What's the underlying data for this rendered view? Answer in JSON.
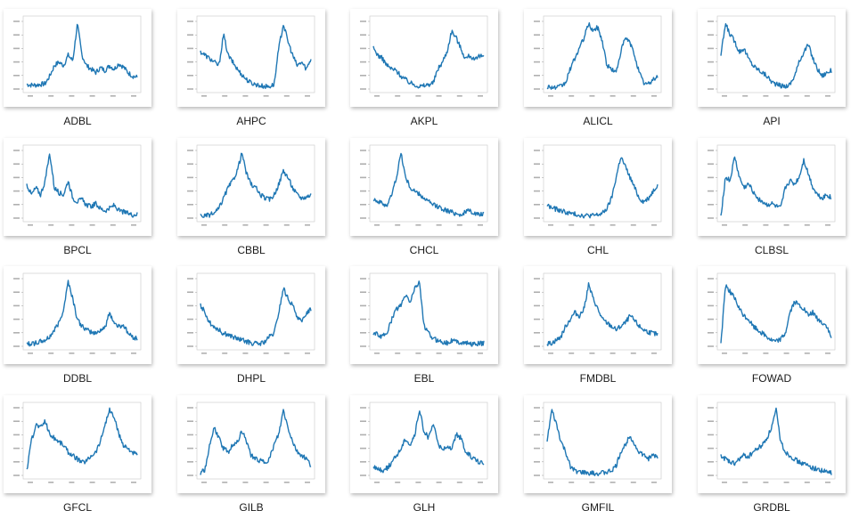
{
  "files": [
    {
      "name": "ADBL",
      "shape": [
        0.08,
        0.07,
        0.07,
        0.08,
        0.09,
        0.2,
        0.35,
        0.4,
        0.35,
        0.5,
        0.42,
        0.95,
        0.5,
        0.35,
        0.3,
        0.25,
        0.32,
        0.28,
        0.35,
        0.3,
        0.38,
        0.33,
        0.25,
        0.2,
        0.18
      ]
    },
    {
      "name": "AHPC",
      "shape": [
        0.55,
        0.5,
        0.45,
        0.4,
        0.35,
        0.8,
        0.5,
        0.4,
        0.3,
        0.22,
        0.15,
        0.1,
        0.08,
        0.06,
        0.05,
        0.05,
        0.08,
        0.6,
        0.95,
        0.7,
        0.5,
        0.35,
        0.4,
        0.3,
        0.45
      ]
    },
    {
      "name": "AKPL",
      "shape": [
        0.6,
        0.5,
        0.45,
        0.35,
        0.3,
        0.28,
        0.2,
        0.15,
        0.1,
        0.08,
        0.05,
        0.06,
        0.08,
        0.1,
        0.3,
        0.4,
        0.55,
        0.85,
        0.75,
        0.6,
        0.45,
        0.5,
        0.42,
        0.48,
        0.5
      ]
    },
    {
      "name": "ALICL",
      "shape": [
        0.05,
        0.04,
        0.03,
        0.05,
        0.1,
        0.3,
        0.45,
        0.6,
        0.75,
        0.95,
        0.85,
        0.9,
        0.7,
        0.35,
        0.3,
        0.25,
        0.55,
        0.75,
        0.68,
        0.5,
        0.25,
        0.1,
        0.08,
        0.15,
        0.2
      ]
    },
    {
      "name": "API",
      "shape": [
        0.5,
        0.95,
        0.8,
        0.7,
        0.55,
        0.6,
        0.45,
        0.35,
        0.3,
        0.25,
        0.2,
        0.12,
        0.08,
        0.06,
        0.05,
        0.08,
        0.2,
        0.4,
        0.55,
        0.65,
        0.45,
        0.3,
        0.2,
        0.25,
        0.28
      ]
    },
    {
      "name": "BPCL",
      "shape": [
        0.5,
        0.35,
        0.45,
        0.35,
        0.55,
        0.95,
        0.45,
        0.38,
        0.35,
        0.55,
        0.3,
        0.25,
        0.28,
        0.2,
        0.18,
        0.22,
        0.15,
        0.12,
        0.15,
        0.2,
        0.12,
        0.1,
        0.08,
        0.06,
        0.07
      ]
    },
    {
      "name": "CBBL",
      "shape": [
        0.05,
        0.04,
        0.06,
        0.08,
        0.15,
        0.3,
        0.45,
        0.55,
        0.7,
        0.95,
        0.65,
        0.5,
        0.45,
        0.35,
        0.3,
        0.28,
        0.35,
        0.5,
        0.7,
        0.6,
        0.45,
        0.35,
        0.3,
        0.32,
        0.35
      ]
    },
    {
      "name": "CHCL",
      "shape": [
        0.3,
        0.25,
        0.22,
        0.2,
        0.35,
        0.6,
        0.95,
        0.6,
        0.45,
        0.4,
        0.35,
        0.3,
        0.25,
        0.2,
        0.18,
        0.15,
        0.12,
        0.1,
        0.08,
        0.06,
        0.1,
        0.12,
        0.08,
        0.06,
        0.08
      ]
    },
    {
      "name": "CHL",
      "shape": [
        0.2,
        0.16,
        0.14,
        0.12,
        0.1,
        0.08,
        0.07,
        0.06,
        0.05,
        0.05,
        0.05,
        0.06,
        0.08,
        0.15,
        0.3,
        0.6,
        0.9,
        0.75,
        0.6,
        0.45,
        0.3,
        0.25,
        0.3,
        0.4,
        0.5
      ]
    },
    {
      "name": "CLBSL",
      "shape": [
        0.05,
        0.6,
        0.55,
        0.9,
        0.6,
        0.45,
        0.5,
        0.4,
        0.3,
        0.25,
        0.2,
        0.22,
        0.18,
        0.15,
        0.45,
        0.55,
        0.5,
        0.6,
        0.85,
        0.65,
        0.45,
        0.35,
        0.3,
        0.35,
        0.3
      ]
    },
    {
      "name": "DDBL",
      "shape": [
        0.05,
        0.05,
        0.06,
        0.08,
        0.1,
        0.15,
        0.25,
        0.35,
        0.55,
        0.95,
        0.7,
        0.4,
        0.3,
        0.25,
        0.22,
        0.2,
        0.25,
        0.28,
        0.5,
        0.35,
        0.3,
        0.32,
        0.2,
        0.15,
        0.12
      ]
    },
    {
      "name": "DHPL",
      "shape": [
        0.6,
        0.5,
        0.35,
        0.3,
        0.25,
        0.2,
        0.18,
        0.15,
        0.12,
        0.1,
        0.08,
        0.06,
        0.05,
        0.05,
        0.08,
        0.15,
        0.2,
        0.5,
        0.85,
        0.7,
        0.6,
        0.45,
        0.35,
        0.5,
        0.55
      ]
    },
    {
      "name": "EBL",
      "shape": [
        0.2,
        0.18,
        0.15,
        0.22,
        0.4,
        0.55,
        0.6,
        0.75,
        0.65,
        0.85,
        0.95,
        0.3,
        0.2,
        0.12,
        0.1,
        0.08,
        0.06,
        0.1,
        0.08,
        0.07,
        0.06,
        0.05,
        0.04,
        0.05,
        0.06
      ]
    },
    {
      "name": "FMDBL",
      "shape": [
        0.05,
        0.06,
        0.1,
        0.15,
        0.3,
        0.4,
        0.5,
        0.45,
        0.55,
        0.9,
        0.7,
        0.55,
        0.4,
        0.35,
        0.3,
        0.25,
        0.3,
        0.35,
        0.45,
        0.38,
        0.3,
        0.25,
        0.22,
        0.2,
        0.18
      ]
    },
    {
      "name": "FOWAD",
      "shape": [
        0.05,
        0.9,
        0.8,
        0.7,
        0.55,
        0.45,
        0.4,
        0.3,
        0.25,
        0.2,
        0.15,
        0.1,
        0.08,
        0.12,
        0.2,
        0.5,
        0.65,
        0.6,
        0.55,
        0.45,
        0.5,
        0.4,
        0.35,
        0.3,
        0.12
      ]
    },
    {
      "name": "GFCL",
      "shape": [
        0.08,
        0.5,
        0.75,
        0.7,
        0.8,
        0.6,
        0.55,
        0.5,
        0.45,
        0.35,
        0.3,
        0.25,
        0.2,
        0.22,
        0.3,
        0.35,
        0.5,
        0.75,
        0.95,
        0.85,
        0.6,
        0.45,
        0.4,
        0.35,
        0.3
      ]
    },
    {
      "name": "GILB",
      "shape": [
        0.05,
        0.1,
        0.45,
        0.7,
        0.55,
        0.4,
        0.35,
        0.45,
        0.5,
        0.65,
        0.5,
        0.3,
        0.25,
        0.22,
        0.2,
        0.25,
        0.45,
        0.6,
        0.95,
        0.7,
        0.5,
        0.35,
        0.3,
        0.25,
        0.15
      ]
    },
    {
      "name": "GLH",
      "shape": [
        0.15,
        0.1,
        0.08,
        0.12,
        0.2,
        0.3,
        0.4,
        0.55,
        0.45,
        0.6,
        0.95,
        0.65,
        0.55,
        0.75,
        0.5,
        0.35,
        0.45,
        0.4,
        0.6,
        0.55,
        0.35,
        0.3,
        0.25,
        0.2,
        0.18
      ]
    },
    {
      "name": "GMFIL",
      "shape": [
        0.5,
        0.95,
        0.75,
        0.5,
        0.35,
        0.15,
        0.08,
        0.06,
        0.05,
        0.05,
        0.04,
        0.04,
        0.05,
        0.06,
        0.08,
        0.15,
        0.35,
        0.45,
        0.6,
        0.45,
        0.35,
        0.3,
        0.25,
        0.3,
        0.28
      ]
    },
    {
      "name": "GRDBL",
      "shape": [
        0.3,
        0.25,
        0.2,
        0.18,
        0.25,
        0.3,
        0.28,
        0.35,
        0.4,
        0.45,
        0.55,
        0.7,
        0.95,
        0.5,
        0.35,
        0.3,
        0.25,
        0.2,
        0.18,
        0.15,
        0.12,
        0.1,
        0.08,
        0.06,
        0.05
      ]
    }
  ]
}
